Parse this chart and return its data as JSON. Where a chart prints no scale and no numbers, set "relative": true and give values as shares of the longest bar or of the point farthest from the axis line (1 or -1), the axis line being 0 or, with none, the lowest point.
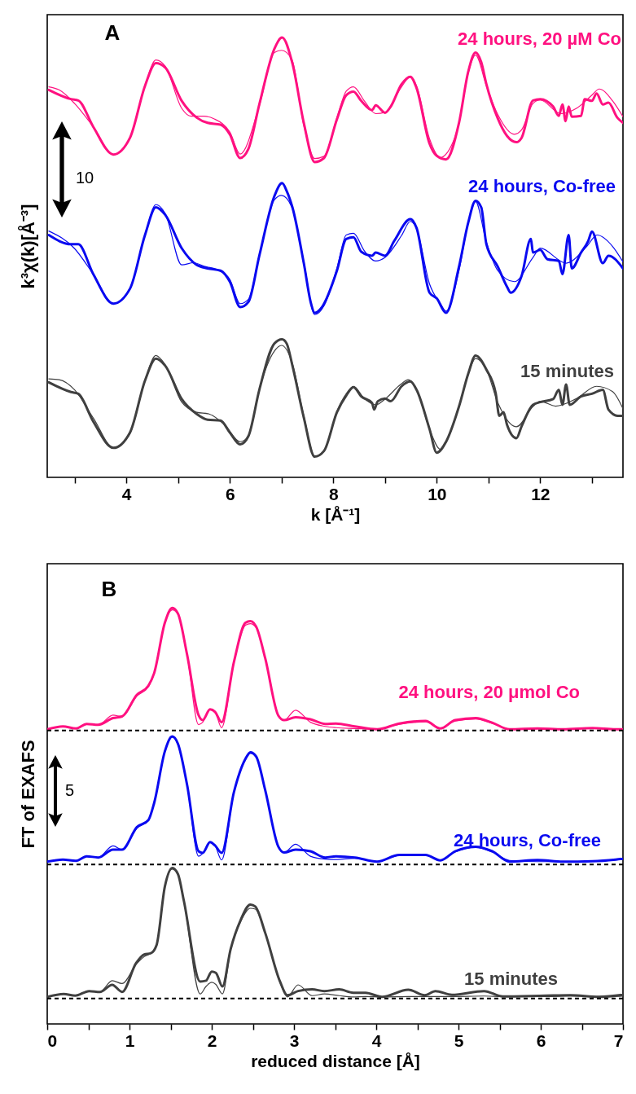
{
  "chart_data": [
    {
      "type": "line",
      "relative": true,
      "ylabel": "k³χ(k)[Å⁻³]",
      "xlabel": "k [Å⁻¹]",
      "xlim": [
        2.47,
        13.6
      ],
      "xticks": [
        {
          "value": 3,
          "label": null
        },
        4,
        {
          "value": 5,
          "label": null
        },
        6,
        {
          "value": 7,
          "label": null
        },
        8,
        {
          "value": 9,
          "label": null
        },
        10,
        {
          "value": 11,
          "label": null
        },
        12,
        {
          "value": 13,
          "label": null
        }
      ],
      "annotations": [
        "A",
        "10"
      ],
      "series": [
        {
          "name": "24 hours, 20 µM Co",
          "color": "#ff1180",
          "x": [
            2.5,
            2.93,
            3.07,
            3.36,
            3.75,
            4.07,
            4.36,
            4.57,
            4.75,
            5.07,
            5.36,
            5.57,
            5.82,
            6.0,
            6.2,
            6.36,
            6.57,
            6.86,
            7.01,
            7.21,
            7.43,
            7.64,
            7.82,
            8.07,
            8.25,
            8.39,
            8.54,
            8.75,
            8.82,
            9.0,
            9.11,
            9.32,
            9.49,
            9.61,
            9.86,
            10.0,
            10.18,
            10.43,
            10.61,
            10.75,
            10.86,
            10.96,
            11.18,
            11.36,
            11.54,
            11.64,
            11.86,
            12.0,
            12.25,
            12.36,
            12.43,
            12.49,
            12.55,
            12.61,
            12.79,
            12.86,
            13.0,
            13.09,
            13.21,
            13.32,
            13.49,
            13.6
          ],
          "values": [
            0.881,
            0.86,
            0.857,
            0.797,
            0.734,
            0.772,
            0.89,
            0.942,
            0.932,
            0.856,
            0.818,
            0.806,
            0.802,
            0.78,
            0.726,
            0.747,
            0.848,
            0.974,
            1.0,
            0.941,
            0.806,
            0.717,
            0.726,
            0.814,
            0.869,
            0.877,
            0.856,
            0.835,
            0.846,
            0.829,
            0.843,
            0.894,
            0.911,
            0.885,
            0.759,
            0.731,
            0.723,
            0.806,
            0.923,
            0.966,
            0.944,
            0.894,
            0.816,
            0.776,
            0.762,
            0.772,
            0.857,
            0.86,
            0.843,
            0.822,
            0.848,
            0.81,
            0.843,
            0.82,
            0.822,
            0.86,
            0.856,
            0.873,
            0.848,
            0.852,
            0.818,
            0.806
          ]
        },
        {
          "color": "#ff1180",
          "x": [
            2.5,
            2.7,
            3.0,
            3.36,
            3.75,
            4.07,
            4.36,
            4.57,
            4.75,
            5.07,
            5.25,
            5.5,
            5.7,
            6.0,
            6.2,
            6.57,
            6.86,
            7.0,
            7.2,
            7.43,
            7.64,
            7.82,
            8.07,
            8.25,
            8.39,
            8.6,
            8.82,
            9.0,
            9.32,
            9.49,
            9.61,
            9.86,
            10.07,
            10.18,
            10.43,
            10.61,
            10.75,
            10.96,
            11.18,
            11.5,
            11.64,
            11.86,
            12.0,
            12.4,
            12.7,
            13.0,
            13.14,
            13.4,
            13.6
          ],
          "values": [
            0.888,
            0.881,
            0.85,
            0.797,
            0.734,
            0.772,
            0.89,
            0.949,
            0.935,
            0.839,
            0.821,
            0.821,
            0.815,
            0.785,
            0.735,
            0.845,
            0.966,
            0.971,
            0.95,
            0.8,
            0.725,
            0.73,
            0.818,
            0.878,
            0.888,
            0.856,
            0.827,
            0.83,
            0.888,
            0.911,
            0.89,
            0.77,
            0.727,
            0.735,
            0.806,
            0.92,
            0.96,
            0.89,
            0.825,
            0.78,
            0.79,
            0.85,
            0.858,
            0.827,
            0.839,
            0.869,
            0.883,
            0.856,
            0.82
          ]
        },
        {
          "name": "24 hours, Co-free",
          "color": "#0a0af0",
          "x": [
            2.5,
            2.93,
            3.07,
            3.36,
            3.75,
            4.07,
            4.36,
            4.57,
            4.75,
            5.07,
            5.36,
            5.57,
            5.82,
            6.0,
            6.2,
            6.36,
            6.57,
            6.86,
            7.01,
            7.1,
            7.21,
            7.43,
            7.57,
            7.64,
            7.78,
            8.07,
            8.25,
            8.39,
            8.54,
            8.75,
            8.82,
            9.0,
            9.18,
            9.49,
            9.61,
            9.86,
            10.0,
            10.18,
            10.43,
            10.61,
            10.75,
            10.86,
            10.96,
            11.18,
            11.36,
            11.43,
            11.64,
            11.82,
            11.86,
            12.0,
            12.14,
            12.36,
            12.43,
            12.55,
            12.61,
            12.79,
            12.93,
            13.0,
            13.21,
            13.32,
            13.6
          ],
          "values": [
            0.551,
            0.53,
            0.53,
            0.462,
            0.395,
            0.429,
            0.551,
            0.614,
            0.597,
            0.521,
            0.483,
            0.475,
            0.47,
            0.445,
            0.387,
            0.399,
            0.504,
            0.639,
            0.669,
            0.651,
            0.614,
            0.487,
            0.395,
            0.374,
            0.387,
            0.47,
            0.542,
            0.546,
            0.513,
            0.504,
            0.511,
            0.504,
            0.538,
            0.587,
            0.567,
            0.42,
            0.407,
            0.374,
            0.479,
            0.58,
            0.629,
            0.614,
            0.53,
            0.479,
            0.433,
            0.42,
            0.458,
            0.542,
            0.511,
            0.517,
            0.496,
            0.492,
            0.462,
            0.551,
            0.475,
            0.511,
            0.538,
            0.559,
            0.487,
            0.504,
            0.475
          ]
        },
        {
          "color": "#0a0af0",
          "x": [
            2.5,
            3.0,
            3.36,
            3.75,
            4.07,
            4.36,
            4.57,
            4.75,
            5.07,
            5.3,
            5.5,
            5.8,
            6.0,
            6.2,
            6.36,
            6.57,
            6.86,
            7.0,
            7.2,
            7.43,
            7.64,
            7.82,
            8.07,
            8.25,
            8.39,
            8.6,
            8.82,
            9.0,
            9.32,
            9.49,
            9.61,
            9.86,
            10.07,
            10.18,
            10.43,
            10.61,
            10.75,
            10.96,
            11.18,
            11.5,
            11.86,
            12.0,
            12.5,
            12.9,
            13.1,
            13.4,
            13.6
          ],
          "values": [
            0.56,
            0.52,
            0.462,
            0.395,
            0.43,
            0.55,
            0.62,
            0.6,
            0.483,
            0.488,
            0.48,
            0.47,
            0.45,
            0.395,
            0.405,
            0.505,
            0.631,
            0.641,
            0.614,
            0.49,
            0.37,
            0.39,
            0.475,
            0.551,
            0.555,
            0.515,
            0.492,
            0.5,
            0.55,
            0.582,
            0.565,
            0.44,
            0.395,
            0.378,
            0.47,
            0.58,
            0.627,
            0.535,
            0.47,
            0.445,
            0.5,
            0.521,
            0.487,
            0.525,
            0.551,
            0.525,
            0.49
          ]
        },
        {
          "name": "15 minutes",
          "color": "#404040",
          "x": [
            2.5,
            2.93,
            3.07,
            3.36,
            3.75,
            4.07,
            4.36,
            4.57,
            4.75,
            5.07,
            5.36,
            5.57,
            5.82,
            6.0,
            6.2,
            6.36,
            6.57,
            6.86,
            7.01,
            7.1,
            7.21,
            7.43,
            7.64,
            7.82,
            8.07,
            8.25,
            8.39,
            8.54,
            8.75,
            8.79,
            8.86,
            9.0,
            9.11,
            9.32,
            9.49,
            9.61,
            9.86,
            10.0,
            10.18,
            10.43,
            10.61,
            10.75,
            10.96,
            11.14,
            11.21,
            11.29,
            11.36,
            11.54,
            11.64,
            11.86,
            12.0,
            12.25,
            12.36,
            12.43,
            12.5,
            12.57,
            12.79,
            13.0,
            13.21,
            13.32,
            13.5,
            13.6
          ],
          "values": [
            0.216,
            0.194,
            0.19,
            0.127,
            0.067,
            0.102,
            0.22,
            0.27,
            0.254,
            0.178,
            0.144,
            0.131,
            0.129,
            0.102,
            0.075,
            0.094,
            0.199,
            0.304,
            0.314,
            0.304,
            0.254,
            0.136,
            0.047,
            0.06,
            0.148,
            0.186,
            0.205,
            0.184,
            0.169,
            0.154,
            0.173,
            0.179,
            0.173,
            0.207,
            0.218,
            0.199,
            0.11,
            0.056,
            0.081,
            0.161,
            0.236,
            0.277,
            0.245,
            0.191,
            0.14,
            0.148,
            0.119,
            0.089,
            0.116,
            0.165,
            0.171,
            0.178,
            0.199,
            0.165,
            0.211,
            0.165,
            0.184,
            0.19,
            0.199,
            0.154,
            0.14,
            0.14
          ]
        },
        {
          "color": "#404040",
          "x": [
            2.5,
            2.7,
            3.0,
            3.36,
            3.75,
            4.07,
            4.36,
            4.57,
            4.75,
            5.07,
            5.36,
            5.6,
            5.9,
            6.2,
            6.36,
            6.57,
            6.86,
            7.0,
            7.2,
            7.43,
            7.64,
            7.82,
            8.07,
            8.25,
            8.39,
            8.6,
            8.82,
            9.0,
            9.3,
            9.45,
            9.61,
            9.86,
            10.07,
            10.18,
            10.43,
            10.61,
            10.75,
            10.96,
            11.18,
            11.54,
            11.86,
            12.0,
            12.3,
            12.7,
            13.09,
            13.4,
            13.6
          ],
          "values": [
            0.224,
            0.222,
            0.199,
            0.135,
            0.068,
            0.1,
            0.22,
            0.277,
            0.256,
            0.171,
            0.148,
            0.144,
            0.119,
            0.081,
            0.094,
            0.2,
            0.287,
            0.3,
            0.262,
            0.14,
            0.048,
            0.06,
            0.15,
            0.19,
            0.207,
            0.179,
            0.165,
            0.178,
            0.211,
            0.222,
            0.2,
            0.11,
            0.064,
            0.08,
            0.16,
            0.235,
            0.27,
            0.245,
            0.17,
            0.115,
            0.161,
            0.173,
            0.162,
            0.179,
            0.207,
            0.195,
            0.156
          ]
        }
      ]
    },
    {
      "type": "line",
      "relative": true,
      "ylabel": "FT of EXAFS",
      "xlabel": "reduced distance [Å]",
      "xlim": [
        0,
        7
      ],
      "xticks": [
        0,
        {
          "value": 0.5,
          "label": null
        },
        1,
        {
          "value": 1.5,
          "label": null
        },
        2,
        {
          "value": 2.5,
          "label": null
        },
        3,
        {
          "value": 3.5,
          "label": null
        },
        4,
        {
          "value": 4.5,
          "label": null
        },
        5,
        {
          "value": 5.5,
          "label": null
        },
        6,
        {
          "value": 6.5,
          "label": null
        },
        7
      ],
      "annotations": [
        "B",
        "5"
      ],
      "ref_lines": [
        {
          "axis": "y",
          "value": 0.705,
          "color": "#000000",
          "line_style": "dashed"
        },
        {
          "axis": "y",
          "value": 0.383,
          "color": "#000000",
          "line_style": "dashed"
        },
        {
          "axis": "y",
          "value": 0.061,
          "color": "#000000",
          "line_style": "dashed"
        }
      ],
      "series": [
        {
          "name": "24 hours, 20 μmol Co",
          "color": "#ff1180",
          "x": [
            0,
            0.19,
            0.35,
            0.48,
            0.62,
            0.8,
            0.91,
            1.09,
            1.23,
            1.3,
            1.43,
            1.52,
            1.59,
            1.7,
            1.84,
            1.89,
            1.98,
            2.04,
            2.12,
            2.27,
            2.41,
            2.47,
            2.54,
            2.65,
            2.81,
            2.88,
            3.02,
            3.2,
            3.38,
            3.51,
            3.74,
            4.01,
            4.28,
            4.6,
            4.78,
            4.96,
            5.21,
            5.41,
            5.62,
            5.96,
            6.27,
            6.63,
            6.91,
            7.0
          ],
          "values": [
            0.708,
            0.715,
            0.71,
            0.721,
            0.719,
            0.735,
            0.739,
            0.791,
            0.813,
            0.843,
            0.964,
            1.0,
            0.986,
            0.888,
            0.742,
            0.73,
            0.756,
            0.75,
            0.725,
            0.87,
            0.964,
            0.968,
            0.955,
            0.879,
            0.741,
            0.73,
            0.737,
            0.732,
            0.721,
            0.722,
            0.715,
            0.708,
            0.722,
            0.728,
            0.71,
            0.73,
            0.735,
            0.724,
            0.708,
            0.71,
            0.708,
            0.711,
            0.708,
            0.708
          ]
        },
        {
          "color": "#ff1180",
          "x": [
            0,
            0.19,
            0.35,
            0.48,
            0.62,
            0.8,
            0.91,
            1.09,
            1.23,
            1.3,
            1.43,
            1.52,
            1.59,
            1.7,
            1.84,
            1.89,
            1.98,
            2.04,
            2.12,
            2.27,
            2.41,
            2.47,
            2.54,
            2.65,
            2.81,
            2.88,
            3.02,
            3.2,
            3.38,
            3.51,
            3.74,
            4.01,
            4.28,
            4.6,
            4.78,
            4.96,
            5.21,
            5.41,
            5.62,
            5.96,
            6.27,
            6.63,
            6.91,
            7.0
          ],
          "values": [
            0.708,
            0.715,
            0.71,
            0.721,
            0.719,
            0.742,
            0.739,
            0.788,
            0.81,
            0.843,
            0.964,
            0.995,
            0.984,
            0.888,
            0.719,
            0.725,
            0.756,
            0.75,
            0.712,
            0.87,
            0.958,
            0.962,
            0.952,
            0.879,
            0.741,
            0.73,
            0.754,
            0.725,
            0.715,
            0.712,
            0.71,
            0.708,
            0.72,
            0.726,
            0.711,
            0.728,
            0.733,
            0.722,
            0.709,
            0.71,
            0.708,
            0.711,
            0.708,
            0.708
          ]
        },
        {
          "name": "24 hours, Co-free",
          "color": "#0a0af0",
          "x": [
            0,
            0.19,
            0.35,
            0.48,
            0.62,
            0.8,
            0.91,
            1.09,
            1.23,
            1.3,
            1.43,
            1.52,
            1.59,
            1.7,
            1.84,
            1.89,
            1.98,
            2.04,
            2.12,
            2.27,
            2.41,
            2.47,
            2.54,
            2.65,
            2.81,
            2.88,
            3.02,
            3.2,
            3.38,
            3.51,
            3.74,
            4.01,
            4.28,
            4.6,
            4.78,
            4.96,
            5.21,
            5.41,
            5.62,
            5.96,
            6.27,
            6.63,
            6.91,
            7.0
          ],
          "values": [
            0.39,
            0.395,
            0.392,
            0.403,
            0.4,
            0.419,
            0.419,
            0.473,
            0.49,
            0.531,
            0.655,
            0.691,
            0.673,
            0.575,
            0.415,
            0.411,
            0.437,
            0.429,
            0.411,
            0.557,
            0.637,
            0.653,
            0.643,
            0.562,
            0.426,
            0.412,
            0.419,
            0.415,
            0.4,
            0.403,
            0.4,
            0.39,
            0.406,
            0.406,
            0.393,
            0.415,
            0.426,
            0.415,
            0.39,
            0.394,
            0.39,
            0.391,
            0.395,
            0.397
          ]
        },
        {
          "color": "#0a0af0",
          "x": [
            0,
            0.19,
            0.35,
            0.48,
            0.62,
            0.8,
            0.91,
            1.09,
            1.23,
            1.3,
            1.43,
            1.52,
            1.59,
            1.7,
            1.84,
            1.89,
            1.98,
            2.04,
            2.12,
            2.27,
            2.41,
            2.47,
            2.54,
            2.65,
            2.81,
            2.88,
            3.02,
            3.2,
            3.38,
            3.51,
            3.74,
            4.01,
            4.28,
            4.6,
            4.78,
            4.96,
            5.21,
            5.41,
            5.62,
            5.96,
            6.27,
            6.63,
            6.91,
            7.0
          ],
          "values": [
            0.39,
            0.395,
            0.392,
            0.403,
            0.4,
            0.428,
            0.419,
            0.47,
            0.49,
            0.531,
            0.655,
            0.689,
            0.671,
            0.575,
            0.403,
            0.41,
            0.437,
            0.429,
            0.394,
            0.557,
            0.635,
            0.65,
            0.641,
            0.562,
            0.426,
            0.412,
            0.432,
            0.403,
            0.396,
            0.395,
            0.398,
            0.39,
            0.405,
            0.405,
            0.393,
            0.413,
            0.424,
            0.413,
            0.393,
            0.39,
            0.39,
            0.391,
            0.394,
            0.396
          ]
        },
        {
          "name": "15 minutes",
          "color": "#404040",
          "x": [
            0,
            0.2,
            0.34,
            0.51,
            0.64,
            0.79,
            0.91,
            1.08,
            1.18,
            1.26,
            1.33,
            1.43,
            1.52,
            1.59,
            1.66,
            1.86,
            1.93,
            2.0,
            2.05,
            2.13,
            2.23,
            2.35,
            2.47,
            2.53,
            2.65,
            2.83,
            2.92,
            3.05,
            3.22,
            3.37,
            3.55,
            3.72,
            3.87,
            4.07,
            4.39,
            4.59,
            4.72,
            4.92,
            5.31,
            5.54,
            6.06,
            6.36,
            6.71,
            7.0
          ],
          "values": [
            0.065,
            0.072,
            0.068,
            0.079,
            0.077,
            0.094,
            0.077,
            0.146,
            0.167,
            0.17,
            0.19,
            0.33,
            0.375,
            0.36,
            0.297,
            0.102,
            0.104,
            0.126,
            0.123,
            0.09,
            0.18,
            0.249,
            0.287,
            0.282,
            0.219,
            0.102,
            0.069,
            0.079,
            0.083,
            0.079,
            0.083,
            0.075,
            0.075,
            0.065,
            0.082,
            0.069,
            0.079,
            0.07,
            0.079,
            0.066,
            0.068,
            0.069,
            0.065,
            0.07
          ]
        },
        {
          "color": "#404040",
          "x": [
            0,
            0.2,
            0.34,
            0.51,
            0.64,
            0.79,
            0.91,
            1.08,
            1.18,
            1.26,
            1.33,
            1.43,
            1.52,
            1.59,
            1.66,
            1.86,
            1.93,
            2.0,
            2.05,
            2.13,
            2.23,
            2.35,
            2.47,
            2.53,
            2.65,
            2.83,
            2.92,
            3.05,
            3.22,
            3.37,
            3.55,
            3.72,
            3.87,
            4.07,
            4.39,
            4.59,
            4.72,
            4.92,
            5.31,
            5.54,
            6.06,
            6.36,
            6.71,
            7.0
          ],
          "values": [
            0.065,
            0.072,
            0.068,
            0.079,
            0.077,
            0.104,
            0.097,
            0.143,
            0.162,
            0.17,
            0.19,
            0.33,
            0.372,
            0.358,
            0.297,
            0.072,
            0.09,
            0.1,
            0.095,
            0.072,
            0.178,
            0.245,
            0.278,
            0.276,
            0.219,
            0.1,
            0.065,
            0.094,
            0.068,
            0.072,
            0.068,
            0.065,
            0.066,
            0.065,
            0.066,
            0.066,
            0.066,
            0.066,
            0.067,
            0.066,
            0.066,
            0.067,
            0.066,
            0.067
          ]
        }
      ]
    }
  ]
}
